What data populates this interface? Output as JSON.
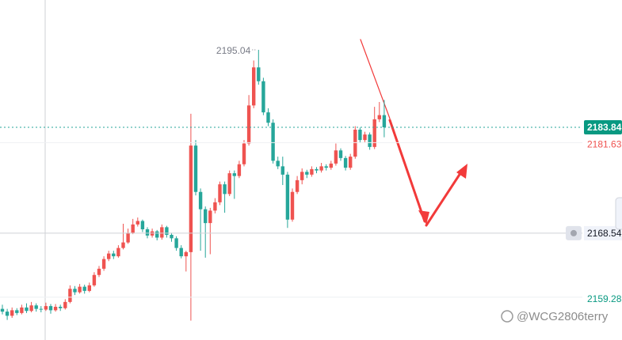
{
  "chart_data": {
    "type": "candlestick",
    "up_color": "#ef5350",
    "down_color": "#26a69a",
    "ylim": [
      2153.1,
      2202.24
    ],
    "ohlc": [
      [
        2157.6,
        2158.2,
        2156.8,
        2157.2
      ],
      [
        2157.2,
        2157.6,
        2156.0,
        2156.6
      ],
      [
        2156.6,
        2157.8,
        2156.3,
        2157.4
      ],
      [
        2157.4,
        2157.7,
        2156.7,
        2157.0
      ],
      [
        2157.0,
        2158.2,
        2156.8,
        2157.8
      ],
      [
        2157.8,
        2158.4,
        2157.0,
        2157.3
      ],
      [
        2157.3,
        2158.6,
        2157.1,
        2158.1
      ],
      [
        2158.1,
        2158.4,
        2157.2,
        2157.6
      ],
      [
        2157.6,
        2158.0,
        2157.1,
        2157.5
      ],
      [
        2157.5,
        2158.5,
        2157.3,
        2158.0
      ],
      [
        2158.0,
        2158.3,
        2156.9,
        2157.4
      ],
      [
        2157.4,
        2158.3,
        2157.2,
        2157.9
      ],
      [
        2157.9,
        2158.2,
        2157.3,
        2157.7
      ],
      [
        2157.7,
        2159.0,
        2157.5,
        2158.6
      ],
      [
        2158.6,
        2161.0,
        2158.4,
        2160.5
      ],
      [
        2160.5,
        2160.9,
        2159.6,
        2160.0
      ],
      [
        2160.0,
        2161.2,
        2159.8,
        2160.8
      ],
      [
        2160.8,
        2161.1,
        2159.8,
        2160.2
      ],
      [
        2160.2,
        2161.4,
        2160.0,
        2161.0
      ],
      [
        2161.0,
        2162.9,
        2160.8,
        2162.5
      ],
      [
        2162.5,
        2163.8,
        2162.2,
        2163.4
      ],
      [
        2163.4,
        2165.2,
        2163.1,
        2164.8
      ],
      [
        2164.8,
        2166.0,
        2164.5,
        2165.6
      ],
      [
        2165.6,
        2166.0,
        2164.8,
        2165.2
      ],
      [
        2165.2,
        2166.8,
        2165.0,
        2166.4
      ],
      [
        2166.4,
        2169.9,
        2166.2,
        2167.2
      ],
      [
        2167.2,
        2169.2,
        2167.0,
        2168.6
      ],
      [
        2168.6,
        2170.6,
        2168.4,
        2169.8
      ],
      [
        2169.8,
        2170.8,
        2169.5,
        2170.3
      ],
      [
        2170.3,
        2170.5,
        2168.7,
        2169.1
      ],
      [
        2169.1,
        2169.4,
        2167.8,
        2168.2
      ],
      [
        2168.2,
        2169.2,
        2167.9,
        2168.8
      ],
      [
        2168.8,
        2169.0,
        2167.5,
        2167.9
      ],
      [
        2167.9,
        2169.8,
        2167.6,
        2169.4
      ],
      [
        2169.4,
        2169.6,
        2167.9,
        2168.3
      ],
      [
        2168.3,
        2168.6,
        2167.3,
        2167.8
      ],
      [
        2167.8,
        2168.1,
        2166.0,
        2166.4
      ],
      [
        2166.4,
        2166.8,
        2164.9,
        2165.2
      ],
      [
        2165.2,
        2166.0,
        2163.0,
        2165.8
      ],
      [
        2165.8,
        2185.8,
        2155.9,
        2181.2
      ],
      [
        2181.2,
        2182.0,
        2174.0,
        2174.5
      ],
      [
        2174.5,
        2175.0,
        2166.0,
        2172.0
      ],
      [
        2172.0,
        2172.4,
        2165.0,
        2170.0
      ],
      [
        2170.0,
        2172.2,
        2165.5,
        2171.8
      ],
      [
        2171.8,
        2173.6,
        2171.4,
        2173.0
      ],
      [
        2173.0,
        2176.0,
        2172.6,
        2175.6
      ],
      [
        2175.6,
        2176.0,
        2171.5,
        2174.2
      ],
      [
        2174.2,
        2177.6,
        2173.9,
        2177.2
      ],
      [
        2177.2,
        2177.6,
        2173.5,
        2176.8
      ],
      [
        2176.8,
        2179.0,
        2176.5,
        2178.5
      ],
      [
        2178.5,
        2182.0,
        2178.2,
        2181.5
      ],
      [
        2181.5,
        2188.5,
        2181.2,
        2187.0
      ],
      [
        2187.0,
        2193.5,
        2186.6,
        2192.5
      ],
      [
        2192.5,
        2195.04,
        2190.0,
        2190.5
      ],
      [
        2190.5,
        2191.0,
        2185.6,
        2186.0
      ],
      [
        2186.0,
        2186.6,
        2184.0,
        2184.5
      ],
      [
        2184.5,
        2185.0,
        2178.6,
        2179.0
      ],
      [
        2179.0,
        2179.6,
        2177.8,
        2178.2
      ],
      [
        2178.2,
        2179.6,
        2175.5,
        2177.0
      ],
      [
        2177.0,
        2177.4,
        2169.3,
        2170.5
      ],
      [
        2170.5,
        2175.0,
        2170.2,
        2174.5
      ],
      [
        2174.5,
        2176.8,
        2174.2,
        2176.2
      ],
      [
        2176.2,
        2177.9,
        2175.6,
        2177.4
      ],
      [
        2177.4,
        2177.7,
        2176.5,
        2177.0
      ],
      [
        2177.0,
        2178.2,
        2176.7,
        2177.8
      ],
      [
        2177.8,
        2178.1,
        2177.2,
        2177.6
      ],
      [
        2177.6,
        2178.7,
        2177.3,
        2178.2
      ],
      [
        2178.2,
        2178.5,
        2177.6,
        2178.0
      ],
      [
        2178.0,
        2179.0,
        2177.7,
        2178.6
      ],
      [
        2178.6,
        2181.5,
        2178.3,
        2180.5
      ],
      [
        2180.5,
        2180.8,
        2179.0,
        2179.4
      ],
      [
        2179.4,
        2179.7,
        2177.6,
        2178.0
      ],
      [
        2178.0,
        2180.0,
        2177.7,
        2179.6
      ],
      [
        2179.6,
        2184.0,
        2179.3,
        2183.5
      ],
      [
        2183.5,
        2183.8,
        2181.6,
        2182.0
      ],
      [
        2182.0,
        2183.2,
        2181.7,
        2182.8
      ],
      [
        2182.8,
        2183.1,
        2180.6,
        2181.0
      ],
      [
        2181.0,
        2186.8,
        2180.7,
        2185.0
      ],
      [
        2185.0,
        2187.5,
        2184.6,
        2185.6
      ],
      [
        2185.6,
        2187.8,
        2182.4,
        2183.84
      ]
    ],
    "price_levels": {
      "last": 2183.84,
      "red_level": 2181.63,
      "crosshair": 2168.54,
      "green_level": 2159.28
    },
    "watermark": "@WCG2806terry"
  }
}
